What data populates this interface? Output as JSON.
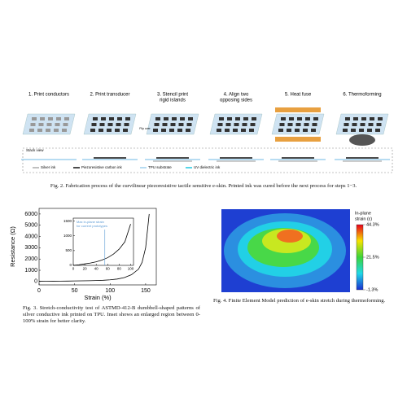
{
  "fig2": {
    "steps": [
      [
        "1. Print conductors"
      ],
      [
        "2. Print transducer"
      ],
      [
        "3. Stencil print",
        "rigid islands"
      ],
      [
        "4. Align two",
        "opposing sides"
      ],
      [
        "5. Heat fuse"
      ],
      [
        "6. Thermoforming"
      ]
    ],
    "flip": "Flip over",
    "stack_view": "Stack view",
    "legend": [
      "Silver ink",
      "Piezoresistive carbon ink",
      "TPU substrate",
      "UV dielectric ink"
    ],
    "caption": "Fig. 2. Fabrication process of the curvilinear piezoresistive tactile sensitive e-skin. Printed ink was cured before the next process for steps 1−3."
  },
  "fig3": {
    "chart_data": {
      "type": "line",
      "xlabel": "Strain (%)",
      "ylabel": "Resistance (Ω)",
      "xlim": [
        0,
        165
      ],
      "ylim": [
        -300,
        6500
      ],
      "xticks": [
        0,
        50,
        100,
        150
      ],
      "yticks": [
        0,
        1000,
        2000,
        3000,
        4000,
        5000,
        6000
      ],
      "x": [
        0,
        10,
        20,
        30,
        40,
        50,
        60,
        70,
        80,
        90,
        100,
        110,
        120,
        130,
        140,
        145,
        150,
        155
      ],
      "values": [
        20,
        25,
        30,
        35,
        40,
        50,
        60,
        70,
        90,
        110,
        150,
        220,
        350,
        600,
        1100,
        1700,
        3000,
        6000
      ],
      "color": "#000000",
      "inset": {
        "xlim": [
          0,
          105
        ],
        "ylim": [
          0,
          1600
        ],
        "xticks": [
          0,
          20,
          40,
          60,
          80,
          100
        ],
        "yticks": [
          0,
          500,
          1000,
          1500
        ],
        "x": [
          0,
          10,
          20,
          30,
          40,
          50,
          60,
          70,
          80,
          90,
          100
        ],
        "values": [
          0,
          20,
          50,
          80,
          120,
          180,
          260,
          380,
          550,
          800,
          1400
        ],
        "marker_x": 55,
        "marker_color": "#5b9bd5",
        "annotation": [
          "Max in-plane strain",
          "for current prototypes"
        ]
      }
    },
    "caption": "Fig. 3. Stretch-conductivity test of ASTMD-412-B dumbbell-shaped patterns of silver conductive ink printed on TPU. Inset shows an enlarged region between 0-100% strain for better clarity."
  },
  "fig4": {
    "colorbar_title": [
      "In-plane",
      "strain (ε)"
    ],
    "colorbar_ticks": [
      {
        "value": 44.3,
        "label": "44.3%"
      },
      {
        "value": 21.5,
        "label": "21.5%"
      },
      {
        "value": -1.3,
        "label": "-1.3%"
      }
    ],
    "caption": "Fig. 4. Finite Element Model prediction of e-skin stretch during thermoforming."
  }
}
